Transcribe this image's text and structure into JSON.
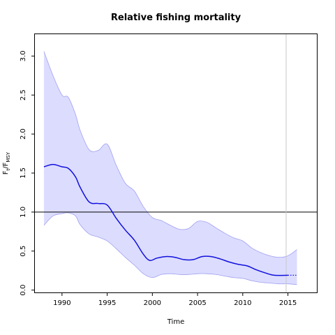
{
  "chart_data": {
    "type": "line",
    "title": "Relative fishing mortality",
    "xlabel": "Time",
    "ylabel": {
      "main": "F",
      "sub1": "t",
      "sep": "/F",
      "sub2": "MSY"
    },
    "xlim": [
      1987,
      2018.2
    ],
    "ylim": [
      -0.03,
      3.28
    ],
    "x_ticks": [
      1990,
      1995,
      2000,
      2005,
      2010,
      2015
    ],
    "y_ticks": [
      0.0,
      0.5,
      1.0,
      1.5,
      2.0,
      2.5,
      3.0
    ],
    "x_tick_labels": [
      "1990",
      "1995",
      "2000",
      "2005",
      "2010",
      "2015"
    ],
    "y_tick_labels": [
      "0.0",
      "0.5",
      "1.0",
      "1.5",
      "2.0",
      "2.5",
      "3.0"
    ],
    "reference_line": 1.0,
    "vertical_line_x": 2014.8,
    "grid": false,
    "colors": {
      "line": "#1010dd",
      "band": "#dcdcff",
      "band_edge": "#a0a0f0",
      "reference": "#000000",
      "vertical": "#c8c8c8"
    },
    "series": [
      {
        "x": [
          1988.0,
          1989.0,
          1990.0,
          1990.7,
          1991.5,
          1992.0,
          1993.0,
          1994.0,
          1995.0,
          1996.0,
          1997.0,
          1998.0,
          1999.0,
          1999.7,
          2000.5,
          2001.5,
          2002.5,
          2003.5,
          2004.5,
          2005.5,
          2006.5,
          2007.5,
          2008.5,
          2009.5,
          2010.5,
          2011.5,
          2012.5,
          2013.5,
          2015.0
        ],
        "values": [
          1.58,
          1.61,
          1.58,
          1.56,
          1.45,
          1.32,
          1.13,
          1.11,
          1.09,
          0.92,
          0.77,
          0.64,
          0.46,
          0.38,
          0.41,
          0.43,
          0.42,
          0.39,
          0.39,
          0.43,
          0.43,
          0.4,
          0.36,
          0.33,
          0.31,
          0.26,
          0.22,
          0.19,
          0.19
        ]
      }
    ],
    "projection": {
      "x": [
        2015.0,
        2016.0
      ],
      "values": [
        0.19,
        0.19
      ]
    },
    "band": {
      "x": [
        1988.0,
        1989.0,
        1990.0,
        1990.7,
        1991.5,
        1992.0,
        1993.0,
        1994.0,
        1995.0,
        1996.0,
        1997.0,
        1998.0,
        1999.0,
        2000.0,
        2001.0,
        2002.0,
        2003.0,
        2004.0,
        2005.0,
        2006.0,
        2007.0,
        2008.0,
        2009.0,
        2010.0,
        2011.0,
        2012.0,
        2013.0,
        2014.0,
        2015.0,
        2016.0
      ],
      "upper": [
        3.06,
        2.75,
        2.5,
        2.47,
        2.25,
        2.05,
        1.8,
        1.79,
        1.87,
        1.6,
        1.37,
        1.27,
        1.07,
        0.93,
        0.89,
        0.83,
        0.78,
        0.79,
        0.88,
        0.87,
        0.8,
        0.73,
        0.67,
        0.63,
        0.54,
        0.48,
        0.44,
        0.42,
        0.44,
        0.52
      ],
      "lower": [
        0.83,
        0.95,
        0.98,
        0.99,
        0.95,
        0.84,
        0.72,
        0.68,
        0.63,
        0.53,
        0.42,
        0.32,
        0.21,
        0.16,
        0.2,
        0.21,
        0.2,
        0.2,
        0.21,
        0.21,
        0.2,
        0.18,
        0.16,
        0.15,
        0.12,
        0.1,
        0.09,
        0.08,
        0.08,
        0.07
      ]
    }
  }
}
